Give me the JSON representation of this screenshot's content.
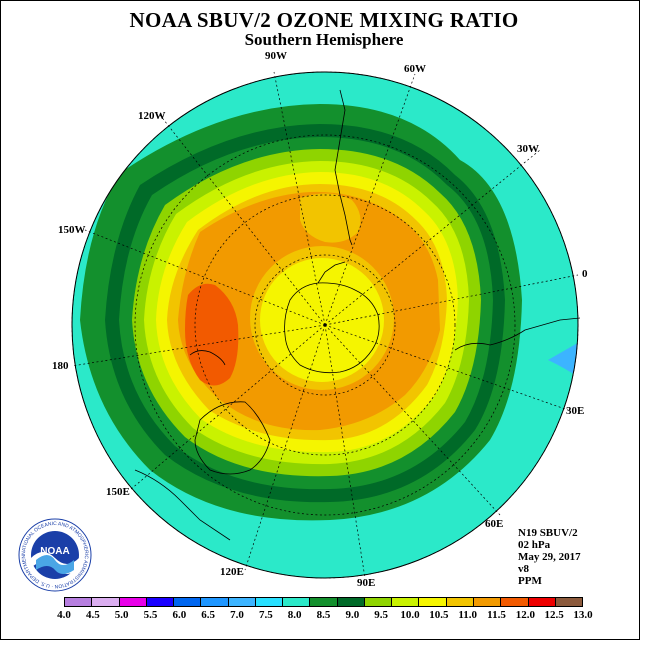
{
  "title": "NOAA SBUV/2 OZONE MIXING RATIO",
  "subtitle": "Southern Hemisphere",
  "longitude_labels": {
    "w90": "90W",
    "w60": "60W",
    "w120": "120W",
    "w30": "30W",
    "w150": "150W",
    "e0": "0",
    "e180": "180",
    "e30": "30E",
    "e150": "150E",
    "e60": "60E",
    "e120": "120E",
    "e90": "90E"
  },
  "info": {
    "instrument": "N19 SBUV/2",
    "level": "02 hPa",
    "date": "May 29, 2017",
    "version": "v8",
    "units": "PPM"
  },
  "logo": {
    "text": "NOAA",
    "ring_text": "NATIONAL OCEANIC AND ATMOSPHERIC ADMINISTRATION · U.S. DEPARTMENT OF COMMERCE"
  },
  "colorbar": {
    "ticks": [
      "4.0",
      "4.5",
      "5.0",
      "5.5",
      "6.0",
      "6.5",
      "7.0",
      "7.5",
      "8.0",
      "8.5",
      "9.0",
      "9.5",
      "10.0",
      "10.5",
      "11.0",
      "11.5",
      "12.0",
      "12.5",
      "13.0"
    ],
    "colors": [
      "#b77fe0",
      "#dbaef0",
      "#e800e8",
      "#1a00ff",
      "#0066f0",
      "#1e96ff",
      "#3cb4ff",
      "#28e0ff",
      "#2be9c9",
      "#13902d",
      "#006a28",
      "#8fd400",
      "#c9f200",
      "#f5f500",
      "#f2c400",
      "#f29a00",
      "#f25a00",
      "#ee0000",
      "#8c5a3c"
    ]
  }
}
